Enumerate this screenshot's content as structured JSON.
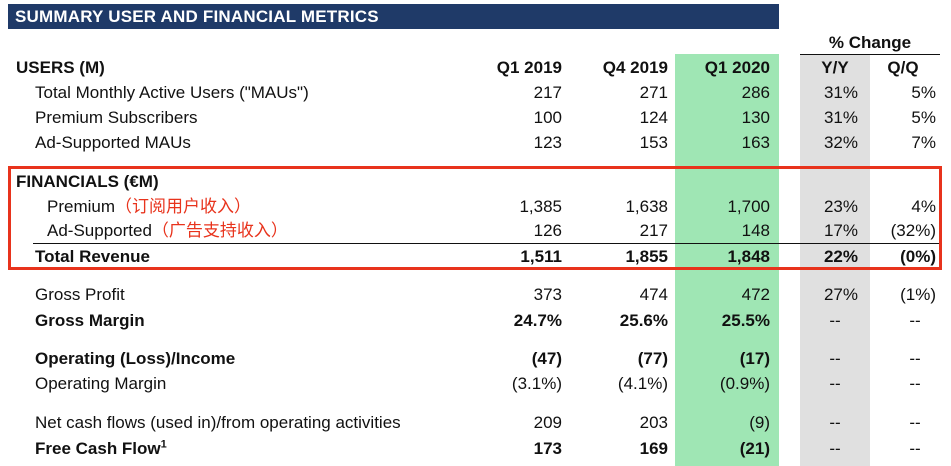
{
  "title": "SUMMARY USER AND FINANCIAL METRICS",
  "pct_change_header": "% Change",
  "columns": {
    "q1_2019": "Q1 2019",
    "q4_2019": "Q4 2019",
    "q1_2020": "Q1 2020",
    "yy": "Y/Y",
    "qq": "Q/Q"
  },
  "users_header": "USERS (M)",
  "financials_header": "FINANCIALS (€M)",
  "rows": {
    "mau": {
      "label": "Total Monthly Active Users (\"MAUs\")",
      "q1_2019": "217",
      "q4_2019": "271",
      "q1_2020": "286",
      "yy": "31%",
      "qq": "5%"
    },
    "premium_subs": {
      "label": "Premium Subscribers",
      "q1_2019": "100",
      "q4_2019": "124",
      "q1_2020": "130",
      "yy": "31%",
      "qq": "5%"
    },
    "ad_maus": {
      "label": "Ad-Supported MAUs",
      "q1_2019": "123",
      "q4_2019": "153",
      "q1_2020": "163",
      "yy": "32%",
      "qq": "7%"
    },
    "premium": {
      "label": "Premium",
      "note": "（订阅用户收入）",
      "q1_2019": "1,385",
      "q4_2019": "1,638",
      "q1_2020": "1,700",
      "yy": "23%",
      "qq": "4%"
    },
    "ad_supported": {
      "label": "Ad-Supported",
      "note": "（广告支持收入）",
      "q1_2019": "126",
      "q4_2019": "217",
      "q1_2020": "148",
      "yy": "17%",
      "qq": "(32%)"
    },
    "total_revenue": {
      "label": "Total Revenue",
      "q1_2019": "1,511",
      "q4_2019": "1,855",
      "q1_2020": "1,848",
      "yy": "22%",
      "qq": "(0%)"
    },
    "gross_profit": {
      "label": "Gross Profit",
      "q1_2019": "373",
      "q4_2019": "474",
      "q1_2020": "472",
      "yy": "27%",
      "qq": "(1%)"
    },
    "gross_margin": {
      "label": "Gross Margin",
      "q1_2019": "24.7%",
      "q4_2019": "25.6%",
      "q1_2020": "25.5%",
      "yy": "--",
      "qq": "--"
    },
    "operating_income": {
      "label": "Operating (Loss)/Income",
      "q1_2019": "(47)",
      "q4_2019": "(77)",
      "q1_2020": "(17)",
      "yy": "--",
      "qq": "--"
    },
    "operating_margin": {
      "label": "Operating Margin",
      "q1_2019": "(3.1%)",
      "q4_2019": "(4.1%)",
      "q1_2020": "(0.9%)",
      "yy": "--",
      "qq": "--"
    },
    "net_cash_flows": {
      "label": "Net cash flows (used in)/from operating activities",
      "q1_2019": "209",
      "q4_2019": "203",
      "q1_2020": "(9)",
      "yy": "--",
      "qq": "--"
    },
    "free_cash_flow": {
      "label": "Free Cash Flow",
      "footnote": "1",
      "q1_2019": "173",
      "q4_2019": "169",
      "q1_2020": "(21)",
      "yy": "--",
      "qq": "--"
    }
  }
}
